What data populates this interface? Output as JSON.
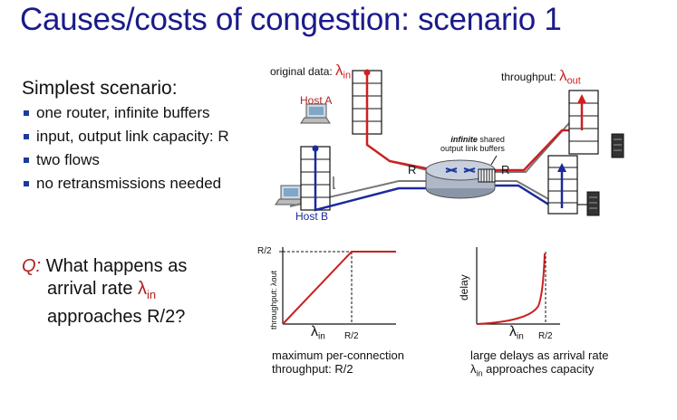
{
  "title": "Causes/costs of congestion: scenario 1",
  "scenario": {
    "heading": "Simplest scenario:",
    "bullets": [
      "one router, infinite buffers",
      "input, output link capacity: R",
      "two flows",
      "no retransmissions needed"
    ]
  },
  "question": {
    "label": "Q:",
    "line1": "What happens as",
    "line2_prefix": "arrival rate ",
    "lambda": "λ",
    "in_sub": "in",
    "line3": "approaches R/2?"
  },
  "diagram": {
    "original_data_label": "original data: ",
    "throughput_label": "throughput: ",
    "lambda": "λ",
    "in_sub": "in",
    "out_sub": "out",
    "host_a": "Host A",
    "host_b": "Host B",
    "buffer_note_bold": "infinite",
    "buffer_note_rest": " shared",
    "buffer_note_line2": "output link buffers",
    "link_r_left": "R",
    "link_r_right": "R",
    "colors": {
      "flow_a": "#cc2020",
      "flow_b": "#1a2a9c",
      "title": "#1a1a8c"
    }
  },
  "graph_throughput": {
    "y_tick": "R/2",
    "ylabel": "throughput: λout",
    "x_lambda": "λ",
    "x_sub": "in",
    "x_tick": "R/2",
    "caption_line1": "maximum per-connection",
    "caption_line2": "throughput: R/2"
  },
  "graph_delay": {
    "ylabel": "delay",
    "x_lambda": "λ",
    "x_sub": "in",
    "x_tick": "R/2",
    "caption_line1": "large delays as arrival rate",
    "caption_lambda": "λ",
    "caption_sub": "in",
    "caption_line2_rest": " approaches capacity"
  },
  "chart_data": [
    {
      "type": "line",
      "ylabel": "throughput: λout",
      "xlabel": "λin",
      "x_ticks": [
        "R/2"
      ],
      "y_ticks": [
        "R/2"
      ],
      "series": [
        {
          "x": [
            0,
            0.5,
            0.6
          ],
          "y": [
            0,
            0.5,
            0.5
          ]
        }
      ],
      "note": "throughput rises linearly until λin = R/2, then flat at R/2"
    },
    {
      "type": "line",
      "ylabel": "delay",
      "xlabel": "λin",
      "x_ticks": [
        "R/2"
      ],
      "series": [
        {
          "x": [
            0,
            0.25,
            0.4,
            0.45,
            0.48,
            0.5
          ],
          "y": [
            0,
            0.1,
            0.3,
            0.55,
            0.8,
            1.0
          ]
        }
      ],
      "note": "delay grows without bound as λin approaches R/2"
    }
  ]
}
